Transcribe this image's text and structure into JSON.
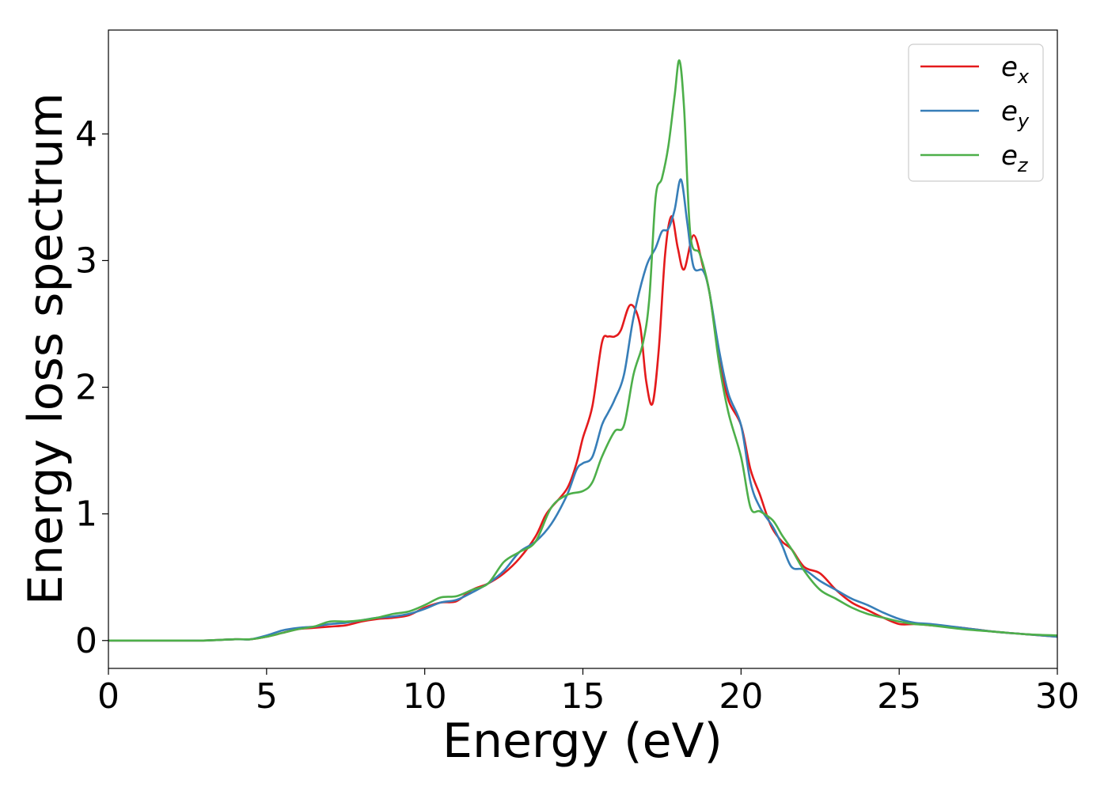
{
  "chart_data": {
    "type": "line",
    "title": "",
    "xlabel": "Energy (eV)",
    "ylabel": "Energy loss spectrum",
    "xlim": [
      0,
      30
    ],
    "ylim": [
      -0.22,
      4.82
    ],
    "xticks": [
      0,
      5,
      10,
      15,
      20,
      25,
      30
    ],
    "xtick_labels": [
      "0",
      "5",
      "10",
      "15",
      "20",
      "25",
      "30"
    ],
    "yticks": [
      0,
      1,
      2,
      3,
      4
    ],
    "ytick_labels": [
      "0",
      "1",
      "2",
      "3",
      "4"
    ],
    "grid": false,
    "legend_position": "top-right",
    "series": [
      {
        "name": "e_x",
        "label_base": "e",
        "label_sub": "x",
        "color": "#e41a1c",
        "x": [
          0,
          1,
          2,
          3,
          4,
          4.5,
          5,
          5.5,
          6,
          6.5,
          7,
          7.5,
          8,
          8.5,
          9,
          9.5,
          10,
          10.5,
          11,
          11.5,
          12,
          12.5,
          13,
          13.5,
          13.8,
          14,
          14.5,
          14.8,
          15,
          15.3,
          15.6,
          15.8,
          16,
          16.2,
          16.5,
          16.8,
          17,
          17.2,
          17.4,
          17.6,
          17.8,
          18,
          18.2,
          18.5,
          18.8,
          19,
          19.3,
          19.6,
          20,
          20.3,
          20.6,
          20.8,
          21,
          21.3,
          21.6,
          22,
          22.5,
          23,
          23.5,
          24,
          24.5,
          25,
          25.5,
          26,
          27,
          28,
          29,
          30
        ],
        "y": [
          0,
          0,
          0,
          0,
          0.01,
          0.01,
          0.03,
          0.06,
          0.09,
          0.1,
          0.11,
          0.12,
          0.15,
          0.17,
          0.18,
          0.2,
          0.26,
          0.3,
          0.31,
          0.4,
          0.45,
          0.53,
          0.65,
          0.82,
          0.98,
          1.05,
          1.2,
          1.4,
          1.6,
          1.85,
          2.35,
          2.4,
          2.4,
          2.45,
          2.65,
          2.5,
          2.05,
          1.87,
          2.3,
          3.05,
          3.35,
          3.1,
          2.93,
          3.2,
          2.95,
          2.75,
          2.25,
          1.9,
          1.7,
          1.35,
          1.15,
          1.0,
          0.88,
          0.78,
          0.72,
          0.58,
          0.53,
          0.4,
          0.3,
          0.24,
          0.18,
          0.13,
          0.13,
          0.12,
          0.1,
          0.07,
          0.05,
          0.03
        ]
      },
      {
        "name": "e_y",
        "label_base": "e",
        "label_sub": "y",
        "color": "#377eb8",
        "x": [
          0,
          1,
          2,
          3,
          4,
          4.5,
          5,
          5.5,
          6,
          6.5,
          7,
          7.5,
          8,
          8.5,
          9,
          9.5,
          10,
          10.5,
          11,
          11.5,
          12,
          12.5,
          13,
          13.5,
          14,
          14.5,
          14.8,
          15,
          15.3,
          15.6,
          15.8,
          16,
          16.3,
          16.6,
          17,
          17.3,
          17.5,
          17.7,
          17.9,
          18.1,
          18.3,
          18.5,
          18.8,
          19,
          19.3,
          19.6,
          20,
          20.3,
          20.6,
          21,
          21.3,
          21.6,
          22,
          22.5,
          23,
          23.5,
          24,
          24.5,
          25,
          25.5,
          26,
          27,
          28,
          29,
          30
        ],
        "y": [
          0,
          0,
          0,
          0,
          0.01,
          0.01,
          0.04,
          0.08,
          0.1,
          0.11,
          0.13,
          0.14,
          0.16,
          0.18,
          0.19,
          0.21,
          0.25,
          0.3,
          0.32,
          0.38,
          0.45,
          0.55,
          0.7,
          0.78,
          0.92,
          1.15,
          1.35,
          1.4,
          1.45,
          1.7,
          1.8,
          1.9,
          2.1,
          2.55,
          2.95,
          3.1,
          3.23,
          3.25,
          3.4,
          3.64,
          3.3,
          2.95,
          2.92,
          2.75,
          2.3,
          1.95,
          1.7,
          1.25,
          1.05,
          0.9,
          0.75,
          0.58,
          0.56,
          0.47,
          0.4,
          0.33,
          0.28,
          0.22,
          0.17,
          0.14,
          0.13,
          0.1,
          0.07,
          0.05,
          0.03
        ]
      },
      {
        "name": "e_z",
        "label_base": "e",
        "label_sub": "z",
        "color": "#4daf4a",
        "x": [
          0,
          1,
          2,
          3,
          4,
          4.5,
          5,
          5.5,
          6,
          6.5,
          7,
          7.5,
          8,
          8.5,
          9,
          9.5,
          10,
          10.5,
          11,
          11.5,
          12,
          12.5,
          13,
          13.5,
          14,
          14.5,
          15,
          15.3,
          15.6,
          16,
          16.3,
          16.6,
          16.9,
          17.1,
          17.3,
          17.5,
          17.7,
          17.9,
          18.05,
          18.2,
          18.4,
          18.7,
          19,
          19.3,
          19.6,
          20,
          20.3,
          20.6,
          21,
          21.3,
          21.6,
          22,
          22.5,
          23,
          23.5,
          24,
          24.5,
          25,
          25.5,
          26,
          27,
          28,
          29,
          30
        ],
        "y": [
          0,
          0,
          0,
          0,
          0.01,
          0.01,
          0.03,
          0.06,
          0.09,
          0.11,
          0.15,
          0.15,
          0.16,
          0.18,
          0.21,
          0.23,
          0.28,
          0.34,
          0.35,
          0.4,
          0.45,
          0.62,
          0.7,
          0.78,
          1.05,
          1.15,
          1.18,
          1.25,
          1.45,
          1.65,
          1.7,
          2.1,
          2.35,
          2.7,
          3.5,
          3.65,
          3.9,
          4.3,
          4.58,
          4.2,
          3.2,
          3.05,
          2.75,
          2.2,
          1.8,
          1.45,
          1.05,
          1.02,
          0.95,
          0.83,
          0.72,
          0.55,
          0.4,
          0.33,
          0.26,
          0.21,
          0.18,
          0.15,
          0.13,
          0.12,
          0.09,
          0.07,
          0.05,
          0.04
        ]
      }
    ]
  }
}
